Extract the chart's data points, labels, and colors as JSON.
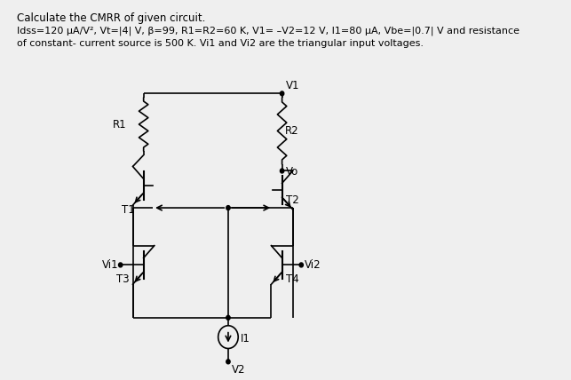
{
  "title_line1": "Calculate the CMRR of given circuit.",
  "title_line2": "Idss=120 μA/V², Vt=|4| V, β=99, R1=R2=60 K, V1= –V2=12 V, I1=80 μA, Vbe=|0.7| V and resistance",
  "title_line3": "of constant- current source is 500 K. Vi1 and Vi2 are the triangular input voltages.",
  "bg_color": "#efefef",
  "lw": 1.2
}
